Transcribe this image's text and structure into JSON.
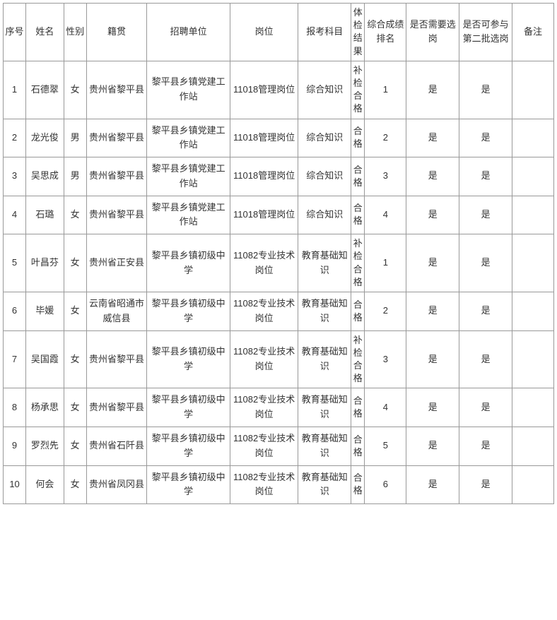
{
  "columns": [
    {
      "key": "seq",
      "label": "序号",
      "class": "col-seq"
    },
    {
      "key": "name",
      "label": "姓名",
      "class": "col-name"
    },
    {
      "key": "gender",
      "label": "性别",
      "class": "col-gender"
    },
    {
      "key": "origin",
      "label": "籍贯",
      "class": "col-origin"
    },
    {
      "key": "unit",
      "label": "招聘单位",
      "class": "col-unit"
    },
    {
      "key": "position",
      "label": "岗位",
      "class": "col-position"
    },
    {
      "key": "subject",
      "label": "报考科目",
      "class": "col-subject"
    },
    {
      "key": "physical",
      "label": "体检结果",
      "class": "col-physical narrow"
    },
    {
      "key": "rank",
      "label": "综合成绩排名",
      "class": "col-rank"
    },
    {
      "key": "need",
      "label": "是否需要选岗",
      "class": "col-need"
    },
    {
      "key": "second",
      "label": "是否可参与第二批选岗",
      "class": "col-second"
    },
    {
      "key": "remark",
      "label": "备注",
      "class": "col-remark"
    }
  ],
  "rows": [
    {
      "seq": "1",
      "name": "石德翠",
      "gender": "女",
      "origin": "贵州省黎平县",
      "unit": "黎平县乡镇党建工作站",
      "position": "11018管理岗位",
      "subject": "综合知识",
      "physical": "补检合格",
      "rank": "1",
      "need": "是",
      "second": "是",
      "remark": ""
    },
    {
      "seq": "2",
      "name": "龙光俊",
      "gender": "男",
      "origin": "贵州省黎平县",
      "unit": "黎平县乡镇党建工作站",
      "position": "11018管理岗位",
      "subject": "综合知识",
      "physical": "合格",
      "rank": "2",
      "need": "是",
      "second": "是",
      "remark": ""
    },
    {
      "seq": "3",
      "name": "吴思成",
      "gender": "男",
      "origin": "贵州省黎平县",
      "unit": "黎平县乡镇党建工作站",
      "position": "11018管理岗位",
      "subject": "综合知识",
      "physical": "合格",
      "rank": "3",
      "need": "是",
      "second": "是",
      "remark": ""
    },
    {
      "seq": "4",
      "name": "石璐",
      "gender": "女",
      "origin": "贵州省黎平县",
      "unit": "黎平县乡镇党建工作站",
      "position": "11018管理岗位",
      "subject": "综合知识",
      "physical": "合格",
      "rank": "4",
      "need": "是",
      "second": "是",
      "remark": ""
    },
    {
      "seq": "5",
      "name": "叶昌芬",
      "gender": "女",
      "origin": "贵州省正安县",
      "unit": "黎平县乡镇初级中学",
      "position": "11082专业技术岗位",
      "subject": "教育基础知识",
      "physical": "补检合格",
      "rank": "1",
      "need": "是",
      "second": "是",
      "remark": ""
    },
    {
      "seq": "6",
      "name": "毕媛",
      "gender": "女",
      "origin": "云南省昭通市威信县",
      "unit": "黎平县乡镇初级中学",
      "position": "11082专业技术岗位",
      "subject": "教育基础知识",
      "physical": "合格",
      "rank": "2",
      "need": "是",
      "second": "是",
      "remark": ""
    },
    {
      "seq": "7",
      "name": "吴国霞",
      "gender": "女",
      "origin": "贵州省黎平县",
      "unit": "黎平县乡镇初级中学",
      "position": "11082专业技术岗位",
      "subject": "教育基础知识",
      "physical": "补检合格",
      "rank": "3",
      "need": "是",
      "second": "是",
      "remark": ""
    },
    {
      "seq": "8",
      "name": "杨承思",
      "gender": "女",
      "origin": "贵州省黎平县",
      "unit": "黎平县乡镇初级中学",
      "position": "11082专业技术岗位",
      "subject": "教育基础知识",
      "physical": "合格",
      "rank": "4",
      "need": "是",
      "second": "是",
      "remark": ""
    },
    {
      "seq": "9",
      "name": "罗烈先",
      "gender": "女",
      "origin": "贵州省石阡县",
      "unit": "黎平县乡镇初级中学",
      "position": "11082专业技术岗位",
      "subject": "教育基础知识",
      "physical": "合格",
      "rank": "5",
      "need": "是",
      "second": "是",
      "remark": ""
    },
    {
      "seq": "10",
      "name": "何会",
      "gender": "女",
      "origin": "贵州省凤冈县",
      "unit": "黎平县乡镇初级中学",
      "position": "11082专业技术岗位",
      "subject": "教育基础知识",
      "physical": "合格",
      "rank": "6",
      "need": "是",
      "second": "是",
      "remark": ""
    }
  ]
}
